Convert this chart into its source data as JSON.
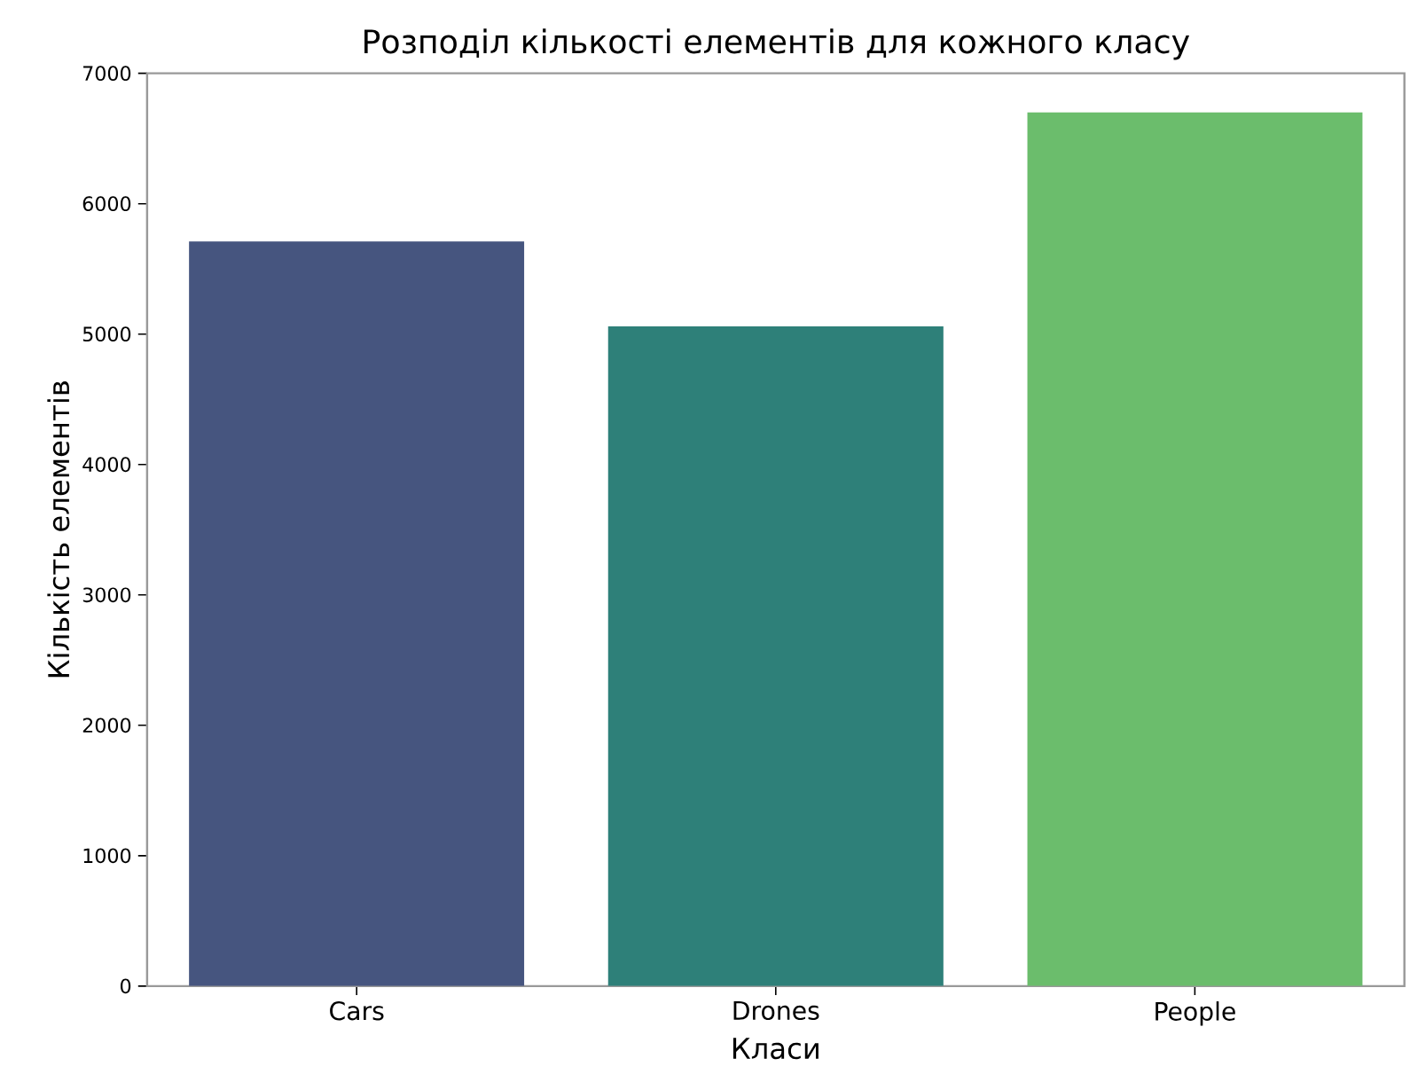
{
  "chart_data": {
    "type": "bar",
    "title": "Розподіл кількості елементів для кожного класу",
    "xlabel": "Класи",
    "ylabel": "Кількість елементів",
    "categories": [
      "Cars",
      "Drones",
      "People"
    ],
    "values": [
      5710,
      5060,
      6700
    ],
    "colors": [
      "#46557f",
      "#2e8079",
      "#6bbd6c"
    ],
    "ylim": [
      0,
      7000
    ],
    "yticks": [
      0,
      1000,
      2000,
      3000,
      4000,
      5000,
      6000,
      7000
    ],
    "grid": false
  }
}
